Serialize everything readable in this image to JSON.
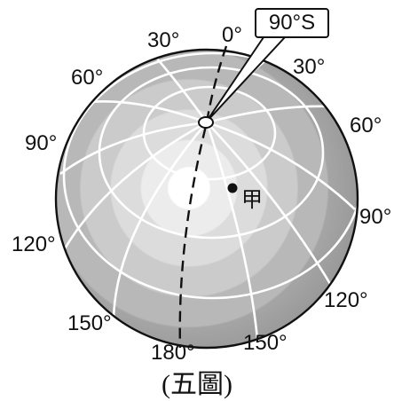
{
  "callout": {
    "text": "90°S"
  },
  "point": {
    "label": "甲"
  },
  "caption": "(五圖)",
  "labels": {
    "top_0": "0°",
    "top_30": "30°",
    "right_30": "30°",
    "left_60": "60°",
    "right_60": "60°",
    "left_90": "90°",
    "right_90": "90°",
    "left_120": "120°",
    "right_120": "120°",
    "left_150": "150°",
    "bottom_150": "150°",
    "bottom_180": "180°"
  },
  "colors": {
    "globe_rim": "#9a9a9a",
    "globe_center": "#ffffff",
    "grid_lines": "#ffffff",
    "outline": "#111111"
  }
}
